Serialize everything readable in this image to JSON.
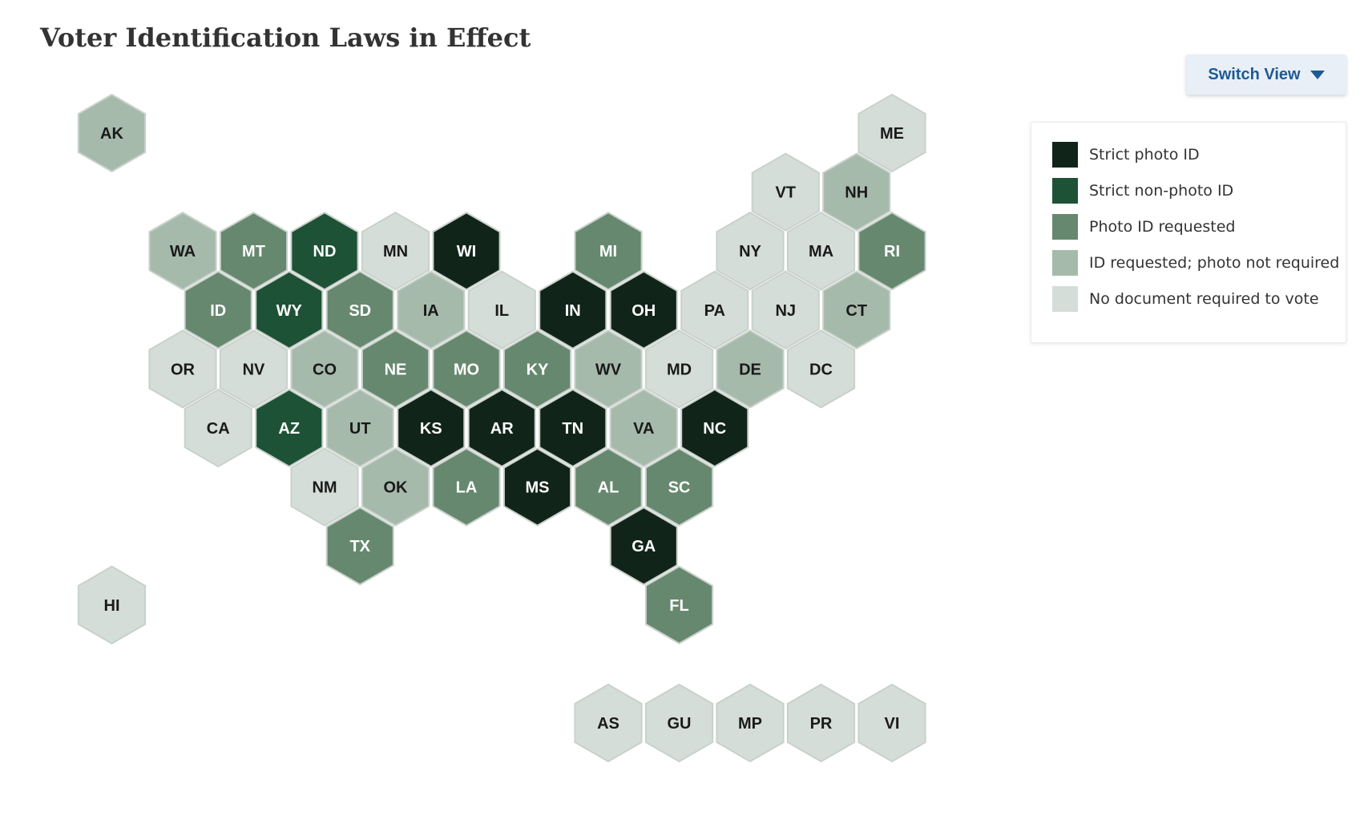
{
  "title": "Voter Identification Laws in Effect",
  "switch_view": {
    "label": "Switch View",
    "icon": "caret-down-icon"
  },
  "legend": [
    {
      "key": "strict_photo",
      "label": "Strict photo ID",
      "color": "#11241a"
    },
    {
      "key": "strict_nonphoto",
      "label": "Strict non-photo ID",
      "color": "#1d5236"
    },
    {
      "key": "photo_requested",
      "label": "Photo ID requested",
      "color": "#66886f"
    },
    {
      "key": "id_requested",
      "label": "ID requested; photo not required",
      "color": "#a6baab"
    },
    {
      "key": "no_document",
      "label": "No document required to vote",
      "color": "#d4ddd8"
    }
  ],
  "states": [
    {
      "abbr": "AK",
      "category": "id_requested"
    },
    {
      "abbr": "ME",
      "category": "no_document"
    },
    {
      "abbr": "VT",
      "category": "no_document"
    },
    {
      "abbr": "NH",
      "category": "id_requested"
    },
    {
      "abbr": "WA",
      "category": "id_requested"
    },
    {
      "abbr": "MT",
      "category": "photo_requested"
    },
    {
      "abbr": "ND",
      "category": "strict_nonphoto"
    },
    {
      "abbr": "MN",
      "category": "no_document"
    },
    {
      "abbr": "WI",
      "category": "strict_photo"
    },
    {
      "abbr": "MI",
      "category": "photo_requested"
    },
    {
      "abbr": "NY",
      "category": "no_document"
    },
    {
      "abbr": "MA",
      "category": "no_document"
    },
    {
      "abbr": "RI",
      "category": "photo_requested"
    },
    {
      "abbr": "ID",
      "category": "photo_requested"
    },
    {
      "abbr": "WY",
      "category": "strict_nonphoto"
    },
    {
      "abbr": "SD",
      "category": "photo_requested"
    },
    {
      "abbr": "IA",
      "category": "id_requested"
    },
    {
      "abbr": "IL",
      "category": "no_document"
    },
    {
      "abbr": "IN",
      "category": "strict_photo"
    },
    {
      "abbr": "OH",
      "category": "strict_photo"
    },
    {
      "abbr": "PA",
      "category": "no_document"
    },
    {
      "abbr": "NJ",
      "category": "no_document"
    },
    {
      "abbr": "CT",
      "category": "id_requested"
    },
    {
      "abbr": "OR",
      "category": "no_document"
    },
    {
      "abbr": "NV",
      "category": "no_document"
    },
    {
      "abbr": "CO",
      "category": "id_requested"
    },
    {
      "abbr": "NE",
      "category": "photo_requested"
    },
    {
      "abbr": "MO",
      "category": "photo_requested"
    },
    {
      "abbr": "KY",
      "category": "photo_requested"
    },
    {
      "abbr": "WV",
      "category": "id_requested"
    },
    {
      "abbr": "MD",
      "category": "no_document"
    },
    {
      "abbr": "DE",
      "category": "id_requested"
    },
    {
      "abbr": "DC",
      "category": "no_document"
    },
    {
      "abbr": "CA",
      "category": "no_document"
    },
    {
      "abbr": "AZ",
      "category": "strict_nonphoto"
    },
    {
      "abbr": "UT",
      "category": "id_requested"
    },
    {
      "abbr": "KS",
      "category": "strict_photo"
    },
    {
      "abbr": "AR",
      "category": "strict_photo"
    },
    {
      "abbr": "TN",
      "category": "strict_photo"
    },
    {
      "abbr": "VA",
      "category": "id_requested"
    },
    {
      "abbr": "NC",
      "category": "strict_photo"
    },
    {
      "abbr": "NM",
      "category": "no_document"
    },
    {
      "abbr": "OK",
      "category": "id_requested"
    },
    {
      "abbr": "LA",
      "category": "photo_requested"
    },
    {
      "abbr": "MS",
      "category": "strict_photo"
    },
    {
      "abbr": "AL",
      "category": "photo_requested"
    },
    {
      "abbr": "SC",
      "category": "photo_requested"
    },
    {
      "abbr": "TX",
      "category": "photo_requested"
    },
    {
      "abbr": "GA",
      "category": "strict_photo"
    },
    {
      "abbr": "HI",
      "category": "no_document"
    },
    {
      "abbr": "FL",
      "category": "photo_requested"
    },
    {
      "abbr": "AS",
      "category": "no_document"
    },
    {
      "abbr": "GU",
      "category": "no_document"
    },
    {
      "abbr": "MP",
      "category": "no_document"
    },
    {
      "abbr": "PR",
      "category": "no_document"
    },
    {
      "abbr": "VI",
      "category": "no_document"
    }
  ]
}
